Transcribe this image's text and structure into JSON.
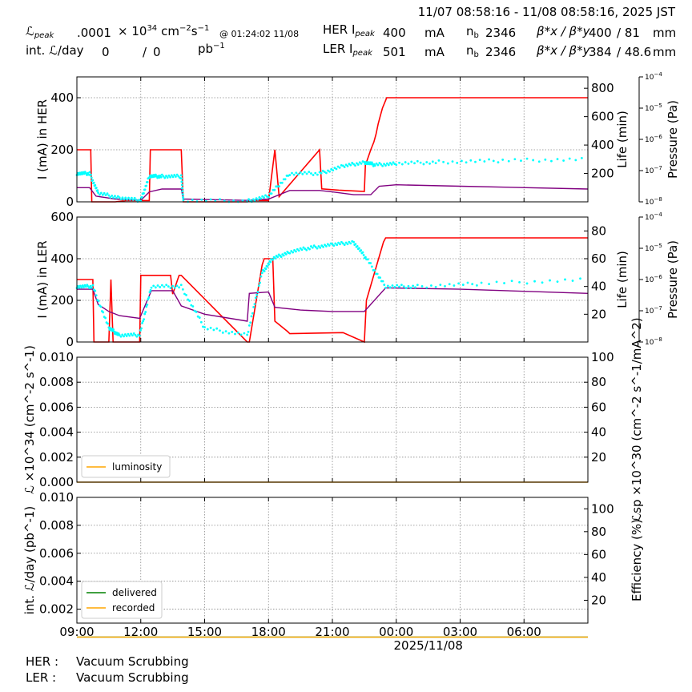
{
  "header": {
    "date_range": "11/07 08:58:16 - 11/08 08:58:16, 2025 JST",
    "lpeak_label": "ℒ",
    "lpeak_sub": "peak",
    "lpeak_value": ".0001",
    "lpeak_unit_a": "× 10",
    "lpeak_unit_exp": "34",
    "lpeak_unit_b": "cm",
    "lpeak_unit_exp2": "−2",
    "lpeak_unit_c": "s",
    "lpeak_unit_exp3": "−1",
    "lpeak_time": "@ 01:24:02 11/08",
    "intl_label": "int. ℒ/day",
    "intl_delivered": "0",
    "intl_slash": "/",
    "intl_recorded": "0",
    "intl_unit": "pb",
    "intl_unit_exp": "−1",
    "her": {
      "label": "HER I",
      "sub": "peak",
      "value": "400",
      "unit": "mA",
      "nb_label": "n",
      "nb_sub": "b",
      "nb": "2346",
      "beta_label": "β*x / β*y",
      "beta_x": "400",
      "beta_y": "/ 81",
      "beta_unit": "mm"
    },
    "ler": {
      "label": "LER I",
      "sub": "peak",
      "value": "501",
      "unit": "mA",
      "nb_label": "n",
      "nb_sub": "b",
      "nb": "2346",
      "beta_label": "β*x / β*y",
      "beta_x": "384",
      "beta_y": "/ 48.6",
      "beta_unit": "mm"
    }
  },
  "footer": {
    "her_label": "HER :",
    "her_status": "Vacuum Scrubbing",
    "ler_label": "LER :",
    "ler_status": "Vacuum Scrubbing"
  },
  "colors": {
    "current": "#ff0000",
    "life": "#800080",
    "pressure": "#00ffff",
    "luminosity": "#ffa500",
    "delivered": "#008000",
    "recorded": "#ffa500"
  },
  "chart_data": [
    {
      "type": "line",
      "panel": "HER",
      "ylabel": "I (mA) in HER",
      "ylabel_right": "Life (min)",
      "ylabel_pressure": "Pressure (Pa)",
      "xlim": [
        9.0,
        33.0
      ],
      "ylim": [
        0,
        480
      ],
      "yticks": [
        "0",
        "200",
        "400"
      ],
      "ylim_right": [
        0,
        880
      ],
      "yticks_right": [
        "200",
        "400",
        "600",
        "800"
      ],
      "pressure_ticks": [
        "10^-8",
        "10^-7",
        "10^-6",
        "10^-5",
        "10^-4"
      ],
      "series": [
        {
          "name": "current",
          "x": [
            9.0,
            9.65,
            9.7,
            10.8,
            11.3,
            12.4,
            12.45,
            13.9,
            14.0,
            17.0,
            17.1,
            18.0,
            18.3,
            18.5,
            20.4,
            20.5,
            21.3,
            22.5,
            22.55,
            22.8,
            22.95,
            23.05,
            23.15,
            23.25,
            23.35,
            23.5,
            23.55,
            33.0
          ],
          "y": [
            200,
            200,
            0,
            0,
            5,
            5,
            200,
            200,
            0,
            0,
            5,
            5,
            200,
            20,
            200,
            50,
            45,
            40,
            140,
            200,
            230,
            260,
            300,
            330,
            360,
            390,
            400,
            400
          ]
        },
        {
          "name": "life",
          "x": [
            9.0,
            9.6,
            9.9,
            10.8,
            12.0,
            12.4,
            13.0,
            13.9,
            14.0,
            17.0,
            18.0,
            19.0,
            20.4,
            21.0,
            22.0,
            22.8,
            23.2,
            24.0,
            27.0,
            33.0
          ],
          "y": [
            100,
            100,
            40,
            20,
            10,
            70,
            90,
            90,
            20,
            10,
            20,
            80,
            80,
            70,
            50,
            50,
            110,
            120,
            110,
            90
          ]
        },
        {
          "name": "pressure",
          "x": [
            9.0,
            9.6,
            10.0,
            11.0,
            12.0,
            12.4,
            13.0,
            13.9,
            14.0,
            17.0,
            18.0,
            19.0,
            20.4,
            21.5,
            22.5,
            23.0,
            24.0,
            26.0,
            29.0,
            33.0
          ],
          "y": [
            200,
            200,
            60,
            30,
            10,
            180,
            180,
            180,
            10,
            5,
            40,
            200,
            200,
            250,
            280,
            260,
            270,
            280,
            290,
            300
          ]
        }
      ]
    },
    {
      "type": "line",
      "panel": "LER",
      "ylabel": "I (mA) in LER",
      "ylabel_right": "Life (min)",
      "ylabel_pressure": "Pressure (Pa)",
      "xlim": [
        9.0,
        33.0
      ],
      "ylim": [
        0,
        600
      ],
      "yticks": [
        "0",
        "200",
        "400",
        "600"
      ],
      "ylim_right": [
        0,
        90
      ],
      "yticks_right": [
        "20",
        "40",
        "60",
        "80"
      ],
      "pressure_ticks": [
        "10^-8",
        "10^-7",
        "10^-6",
        "10^-5",
        "10^-4"
      ],
      "series": [
        {
          "name": "current",
          "x": [
            9.0,
            9.75,
            9.8,
            10.5,
            10.6,
            10.7,
            11.0,
            11.95,
            12.0,
            13.4,
            13.5,
            13.8,
            13.9,
            17.0,
            17.1,
            17.7,
            17.8,
            18.2,
            18.3,
            18.9,
            19.0,
            21.5,
            22.5,
            22.6,
            23.4,
            23.5,
            33.0
          ],
          "y": [
            300,
            300,
            0,
            0,
            300,
            0,
            0,
            0,
            320,
            320,
            230,
            320,
            320,
            0,
            0,
            370,
            400,
            400,
            100,
            50,
            40,
            45,
            0,
            200,
            480,
            500,
            500
          ]
        },
        {
          "name": "life",
          "x": [
            9.0,
            9.75,
            10.0,
            10.5,
            11.0,
            11.95,
            12.5,
            13.5,
            13.9,
            15.0,
            17.0,
            17.1,
            18.0,
            18.3,
            19.5,
            21.0,
            22.5,
            23.5,
            27.0,
            33.0
          ],
          "y": [
            38,
            38,
            27,
            22,
            19,
            17,
            37,
            37,
            26,
            20,
            15,
            35,
            36,
            25,
            23,
            22,
            22,
            39,
            38,
            35
          ]
        },
        {
          "name": "pressure",
          "x": [
            9.0,
            9.75,
            10.5,
            11.0,
            11.95,
            12.5,
            13.9,
            15.0,
            17.0,
            17.7,
            18.2,
            19.0,
            20.0,
            21.0,
            22.0,
            22.6,
            23.5,
            25.0,
            28.0,
            33.0
          ],
          "y": [
            40,
            40,
            10,
            5,
            5,
            40,
            40,
            10,
            5,
            50,
            60,
            65,
            68,
            70,
            72,
            60,
            40,
            40,
            42,
            45
          ]
        }
      ]
    },
    {
      "type": "line",
      "panel": "luminosity",
      "ylabel": "ℒ ×10^34 (cm^-2 s^-1)",
      "ylabel_right": "ℒsp ×10^30 (cm^-2 s^-1/mA^2)",
      "xlim": [
        9.0,
        33.0
      ],
      "ylim": [
        0,
        0.01
      ],
      "yticks": [
        "0.000",
        "0.002",
        "0.004",
        "0.006",
        "0.008",
        "0.010"
      ],
      "ylim_right": [
        0,
        100
      ],
      "yticks_right": [
        "20",
        "40",
        "60",
        "80",
        "100"
      ],
      "legend": "lower-left",
      "series": [
        {
          "name": "luminosity",
          "x": [
            9.0,
            33.0
          ],
          "y": [
            0.0,
            0.0
          ]
        }
      ]
    },
    {
      "type": "line",
      "panel": "integrated",
      "ylabel": "int. ℒ/day (pb^-1)",
      "ylabel_right": "Efficiency (%)",
      "xlim": [
        9.0,
        33.0
      ],
      "ylim": [
        0.001,
        0.01
      ],
      "yticks": [
        "0.002",
        "0.004",
        "0.006",
        "0.008",
        "0.010"
      ],
      "ylim_right": [
        0,
        110
      ],
      "yticks_right": [
        "20",
        "40",
        "60",
        "80",
        "100"
      ],
      "legend": "lower-left",
      "xticks": [
        "09:00",
        "12:00",
        "15:00",
        "18:00",
        "21:00",
        "00:00",
        "03:00",
        "06:00"
      ],
      "xdate_label": "2025/11/08",
      "series": [
        {
          "name": "delivered",
          "x": [
            9.0,
            33.0
          ],
          "y": [
            0.0,
            0.0
          ]
        },
        {
          "name": "recorded",
          "x": [
            9.0,
            33.0
          ],
          "y": [
            0.0,
            0.0
          ]
        }
      ]
    }
  ]
}
